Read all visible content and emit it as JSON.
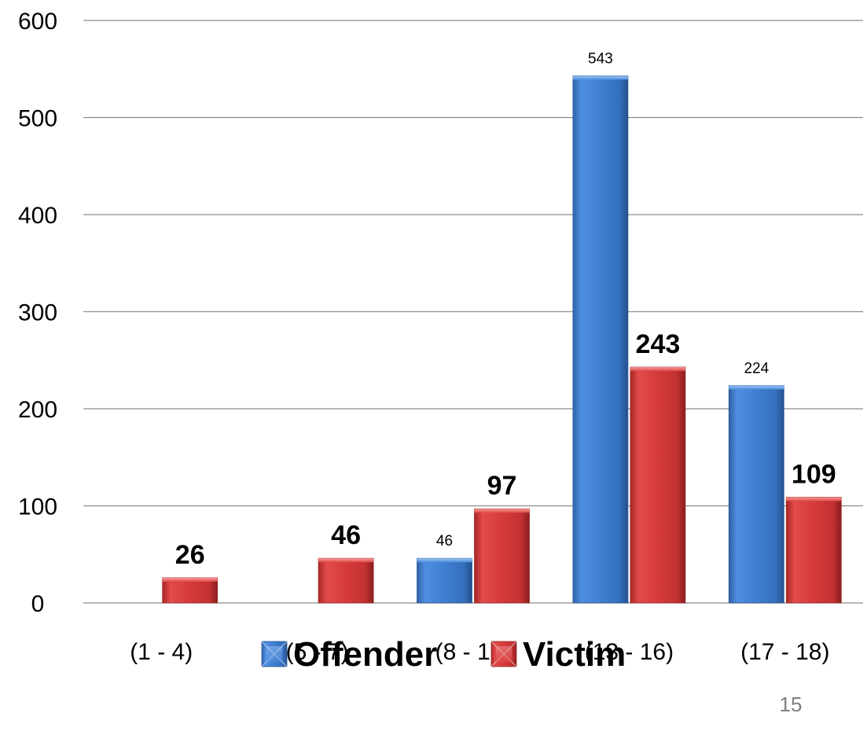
{
  "chart_data": {
    "type": "bar",
    "categories": [
      "(1 - 4)",
      "(5 - 7)",
      "(8 - 12)",
      "(13 - 16)",
      "(17 - 18)"
    ],
    "series": [
      {
        "name": "Offender",
        "values": [
          null,
          null,
          46,
          543,
          224
        ],
        "color": "#3f7fd0",
        "label_style": "small"
      },
      {
        "name": "Victim",
        "values": [
          26,
          46,
          97,
          243,
          109
        ],
        "color": "#d63a3a",
        "label_style": "bold"
      }
    ],
    "ylim": [
      0,
      600
    ],
    "yticks": [
      "0",
      "100",
      "200",
      "300",
      "400",
      "500",
      "600"
    ],
    "ytick_values": [
      0,
      100,
      200,
      300,
      400,
      500,
      600
    ],
    "grid": true,
    "legend_position": "bottom-center",
    "title": "",
    "xlabel": "",
    "ylabel": ""
  },
  "page_number": "15"
}
